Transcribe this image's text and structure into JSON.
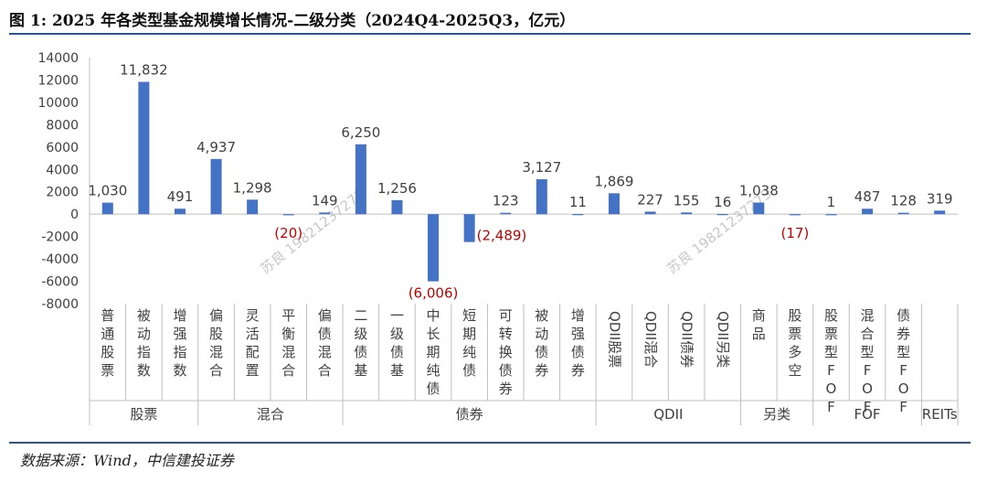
{
  "title": "图 1: 2025 年各类型基金规模增长情况-二级分类（2024Q4-2025Q3，亿元）",
  "source": "数据来源：Wind，中信建投证券",
  "watermark": "苏良 19821237273",
  "colors": {
    "bar": "#4472c4",
    "negative_label": "#c00000",
    "axis": "#bfbfbf",
    "text": "#404040",
    "rule": "#2f5496"
  },
  "chart_data": {
    "type": "bar",
    "ylim": [
      -8000,
      14000
    ],
    "yticks": [
      14000,
      12000,
      10000,
      8000,
      6000,
      4000,
      2000,
      0,
      -2000,
      -4000,
      -6000,
      -8000
    ],
    "ytick_labels": [
      "14000",
      "12000",
      "10000",
      "8000",
      "6000",
      "4000",
      "2000",
      "0",
      "-2000",
      "-4000",
      "-6000",
      "-8000"
    ],
    "categories": [
      "普通股票",
      "被动指数",
      "增强指数",
      "偏股混合",
      "灵活配置",
      "平衡混合",
      "偏债混合",
      "二级债基",
      "一级债基",
      "中长期纯债",
      "短期纯债",
      "可转换债券",
      "被动债券",
      "增强债券",
      "QDII股票",
      "QDII混合",
      "QDII债券",
      "QDII另类",
      "商品",
      "股票多空",
      "股票型FOF",
      "混合型FOF",
      "债券型FOF",
      ""
    ],
    "values": [
      1030,
      11832,
      491,
      4937,
      1298,
      -20,
      149,
      6250,
      1256,
      -6006,
      -2489,
      123,
      3127,
      11,
      1869,
      227,
      155,
      16,
      1038,
      -17,
      1,
      487,
      128,
      319
    ],
    "value_labels": [
      "1,030",
      "11,832",
      "491",
      "4,937",
      "1,298",
      "(20)",
      "149",
      "6,250",
      "1,256",
      "(6,006)",
      "(2,489)",
      "123",
      "3,127",
      "11",
      "1,869",
      "227",
      "155",
      "16",
      "1,038",
      "(17)",
      "1",
      "487",
      "128",
      "319"
    ],
    "groups": [
      {
        "name": "股票",
        "start": 0,
        "end": 2
      },
      {
        "name": "混合",
        "start": 3,
        "end": 6
      },
      {
        "name": "债券",
        "start": 7,
        "end": 13
      },
      {
        "name": "QDII",
        "start": 14,
        "end": 17
      },
      {
        "name": "另类",
        "start": 18,
        "end": 19
      },
      {
        "name": "FOF",
        "start": 20,
        "end": 22
      },
      {
        "name": "REITs",
        "start": 23,
        "end": 23
      }
    ],
    "legend": "none",
    "grid": false
  }
}
